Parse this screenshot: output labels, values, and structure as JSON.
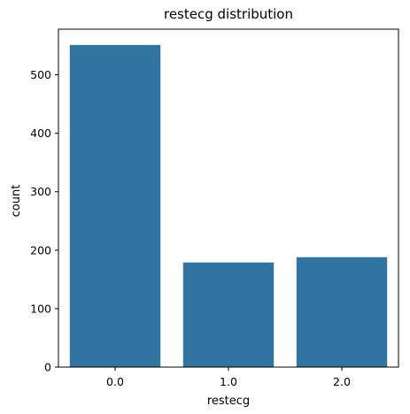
{
  "chart_data": {
    "type": "bar",
    "title": "restecg distribution",
    "xlabel": "restecg",
    "ylabel": "count",
    "categories": [
      "0.0",
      "1.0",
      "2.0"
    ],
    "values": [
      551,
      179,
      188
    ],
    "ylim": [
      0,
      578
    ],
    "yticks": [
      0,
      100,
      200,
      300,
      400,
      500
    ],
    "ytick_labels": [
      "0",
      "100",
      "200",
      "300",
      "400",
      "500"
    ],
    "grid": false,
    "legend": "none",
    "bar_color": "#3274a1"
  }
}
